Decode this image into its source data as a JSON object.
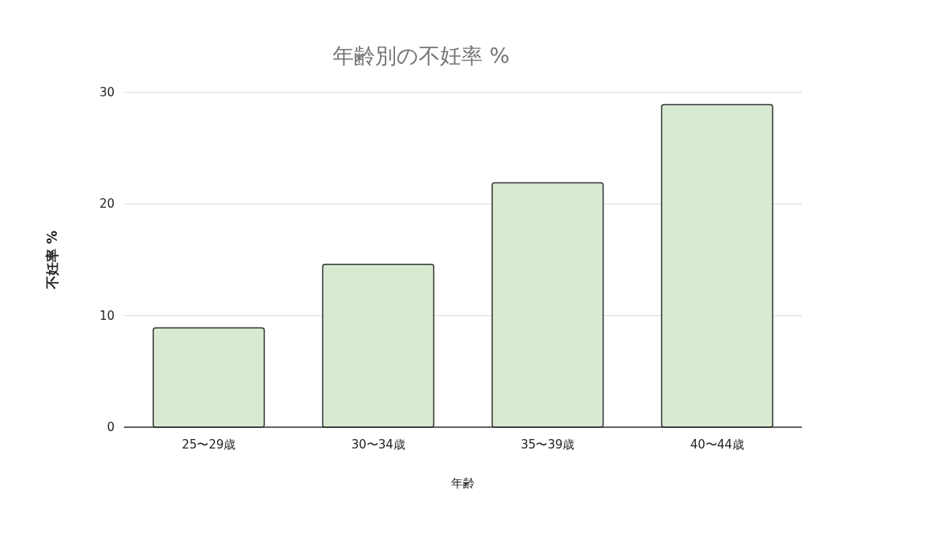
{
  "chart_data": {
    "type": "bar",
    "title": "年齢別の不妊率 %",
    "xlabel": "年齢",
    "ylabel": "不妊率 %",
    "categories": [
      "25〜29歳",
      "30〜34歳",
      "35〜39歳",
      "40〜44歳"
    ],
    "values": [
      8.9,
      14.6,
      21.9,
      28.9
    ],
    "color": "#d9ead3",
    "ylim": [
      0,
      30
    ],
    "yticks": [
      0,
      10,
      20,
      30
    ],
    "grid": "y"
  }
}
